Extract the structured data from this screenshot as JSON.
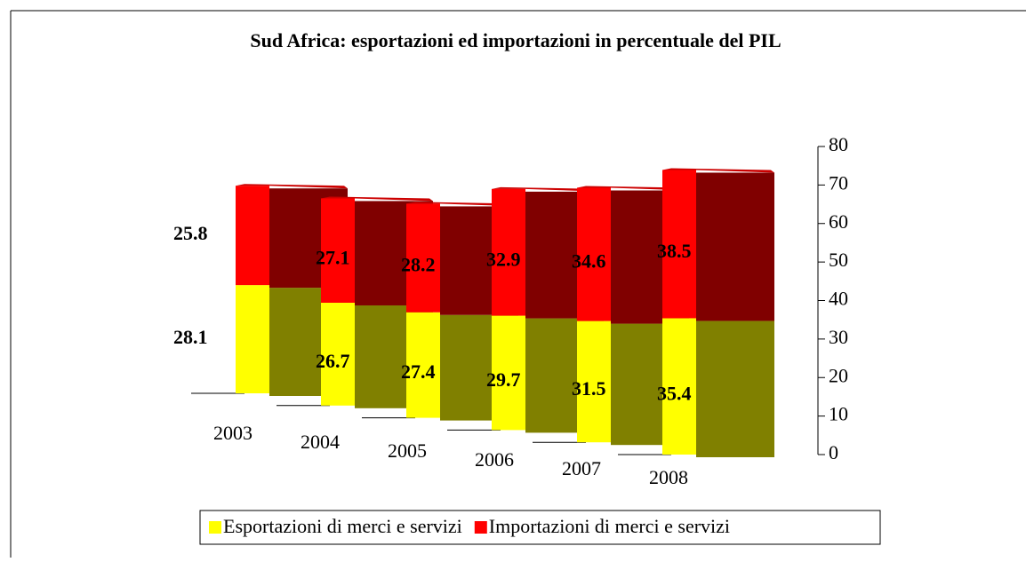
{
  "chart_data": {
    "type": "bar3d_stacked",
    "title": "Sud Africa: esportazioni ed importazioni in percentuale del PIL",
    "categories": [
      "2003",
      "2004",
      "2005",
      "2006",
      "2007",
      "2008"
    ],
    "series": [
      {
        "name": "Esportazioni di merci e servizi",
        "color": "#ffff00",
        "values": [
          28.1,
          26.7,
          27.4,
          29.7,
          31.5,
          35.4
        ]
      },
      {
        "name": "Importazioni di merci e servizi",
        "color": "#ff0000",
        "values": [
          25.8,
          27.1,
          28.2,
          32.9,
          34.6,
          38.5
        ]
      }
    ],
    "ylim": [
      0,
      80
    ],
    "yticks": [
      0,
      10,
      20,
      30,
      40,
      50,
      60,
      70,
      80
    ]
  }
}
